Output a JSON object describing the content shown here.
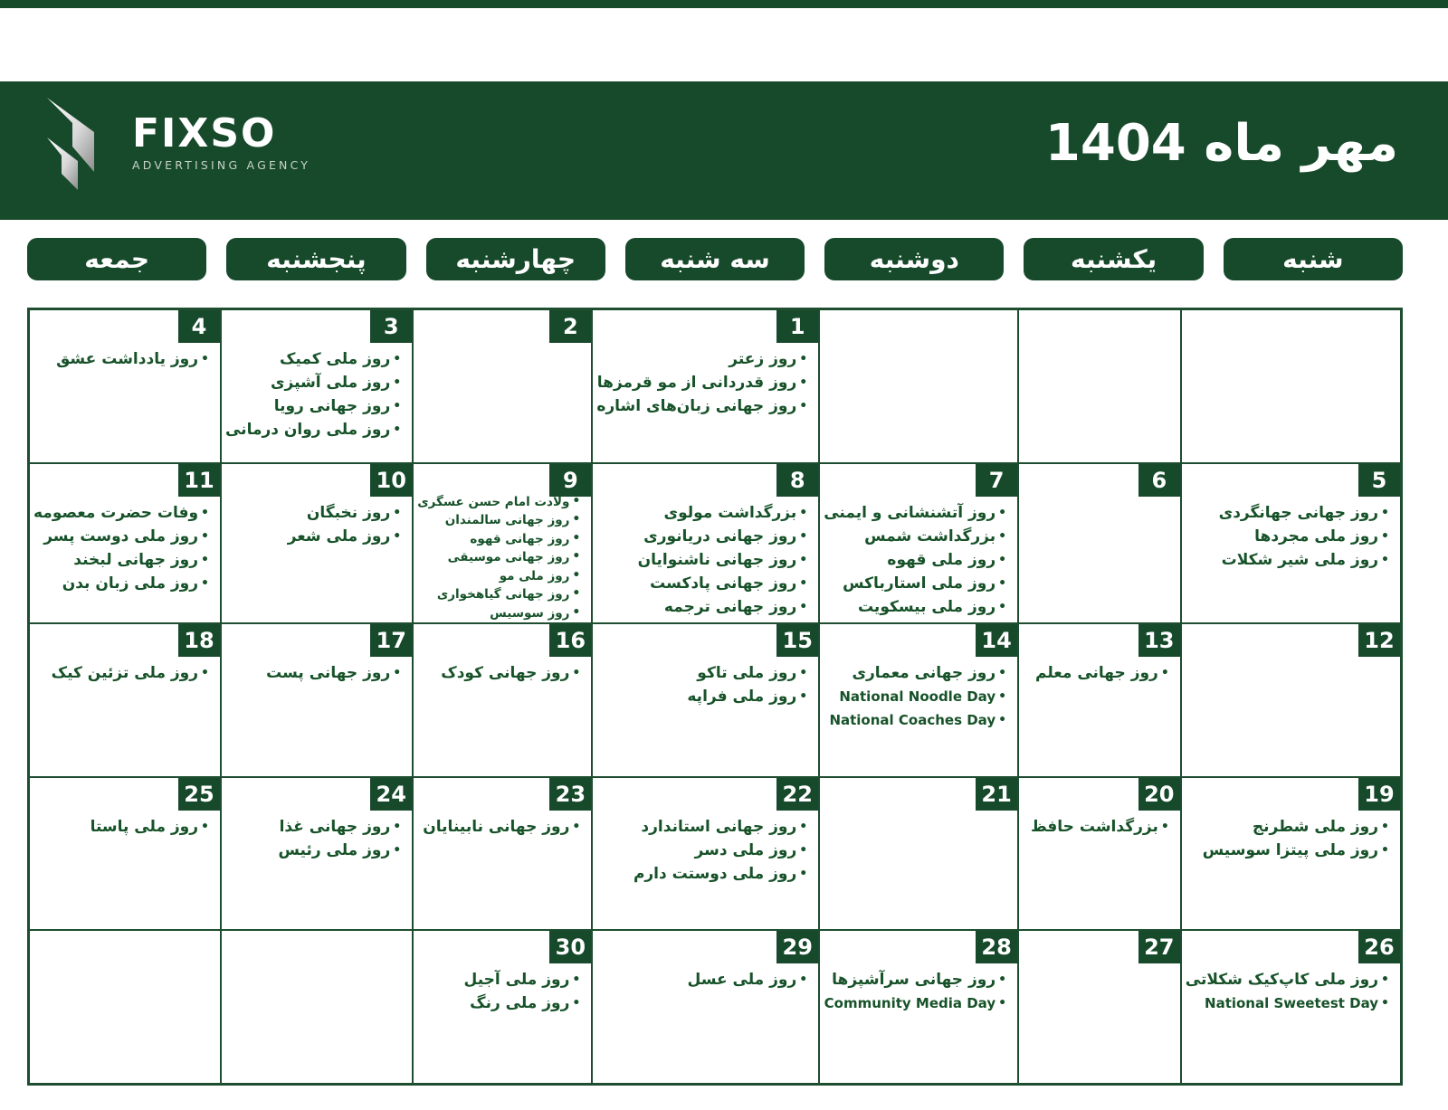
{
  "header": {
    "title": "مهر ماه 1404",
    "logo_name": "FIXSO",
    "logo_subtitle": "ADVERTISING AGENCY"
  },
  "colors": {
    "green": "#17492b",
    "border_green": "#1e4d30",
    "event_text_green": "#175229",
    "background": "#ffffff"
  },
  "weekdays": [
    "شنبه",
    "یکشنبه",
    "دوشنبه",
    "سه شنبه",
    "چهارشنبه",
    "پنجشنبه",
    "جمعه"
  ],
  "calendar": {
    "weeks": [
      [
        {
          "day": null,
          "events": []
        },
        {
          "day": null,
          "events": []
        },
        {
          "day": null,
          "events": []
        },
        {
          "day": "1",
          "events": [
            {
              "t": "روز زعتر"
            },
            {
              "t": "روز قدردانی از مو قرمزها"
            },
            {
              "t": "روز جهانی زبان‌های اشاره"
            }
          ]
        },
        {
          "day": "2",
          "events": []
        },
        {
          "day": "3",
          "events": [
            {
              "t": "روز ملی کمیک"
            },
            {
              "t": "روز ملی آشپزی"
            },
            {
              "t": "روز جهانی رویا"
            },
            {
              "t": "روز ملی روان درمانی"
            }
          ]
        },
        {
          "day": "4",
          "events": [
            {
              "t": "روز یادداشت عشق"
            }
          ]
        }
      ],
      [
        {
          "day": "5",
          "events": [
            {
              "t": "روز جهانی جهانگردی"
            },
            {
              "t": "روز ملی مجردها"
            },
            {
              "t": "روز ملی شیر شکلات"
            }
          ]
        },
        {
          "day": "6",
          "events": []
        },
        {
          "day": "7",
          "events": [
            {
              "t": "روز آتشنشانی و ایمنی"
            },
            {
              "t": "بزرگداشت شمس"
            },
            {
              "t": "روز ملی قهوه"
            },
            {
              "t": "روز ملی استارباکس"
            },
            {
              "t": "روز ملی بیسکویت"
            }
          ]
        },
        {
          "day": "8",
          "events": [
            {
              "t": "بزرگداشت مولوی"
            },
            {
              "t": "روز جهانی دریانوری"
            },
            {
              "t": "روز جهانی ناشنوایان"
            },
            {
              "t": "روز جهانی پادکست"
            },
            {
              "t": "روز جهانی ترجمه"
            }
          ]
        },
        {
          "day": "9",
          "events": [
            {
              "t": "ولادت امام حسن عسگری"
            },
            {
              "t": "روز جهانی سالمندان"
            },
            {
              "t": "روز جهانی قهوه"
            },
            {
              "t": "روز جهانی موسیقی"
            },
            {
              "t": "روز ملی مو"
            },
            {
              "t": "روز جهانی گیاهخواری"
            },
            {
              "t": "روز سوسیس"
            }
          ]
        },
        {
          "day": "10",
          "events": [
            {
              "t": "روز نخبگان"
            },
            {
              "t": "روز ملی شعر"
            }
          ]
        },
        {
          "day": "11",
          "events": [
            {
              "t": "وفات حضرت معصومه"
            },
            {
              "t": "روز ملی دوست پسر"
            },
            {
              "t": "روز جهانی لبخند"
            },
            {
              "t": "روز ملی زبان بدن"
            }
          ]
        }
      ],
      [
        {
          "day": "12",
          "events": []
        },
        {
          "day": "13",
          "events": [
            {
              "t": "روز جهانی معلم"
            }
          ]
        },
        {
          "day": "14",
          "events": [
            {
              "t": "روز جهانی معماری"
            },
            {
              "t": "National Noodle Day",
              "en": true
            },
            {
              "t": "National Coaches Day",
              "en": true
            }
          ]
        },
        {
          "day": "15",
          "events": [
            {
              "t": "روز ملی تاکو"
            },
            {
              "t": "روز ملی فراپه"
            }
          ]
        },
        {
          "day": "16",
          "events": [
            {
              "t": "روز جهانی کودک"
            }
          ]
        },
        {
          "day": "17",
          "events": [
            {
              "t": "روز جهانی پست"
            }
          ]
        },
        {
          "day": "18",
          "events": [
            {
              "t": "روز ملی تزئین کیک"
            }
          ]
        }
      ],
      [
        {
          "day": "19",
          "events": [
            {
              "t": "روز ملی شطرنج"
            },
            {
              "t": "روز ملی پیتزا سوسیس"
            }
          ]
        },
        {
          "day": "20",
          "events": [
            {
              "t": "بزرگداشت حافظ"
            }
          ]
        },
        {
          "day": "21",
          "events": []
        },
        {
          "day": "22",
          "events": [
            {
              "t": "روز جهانی استاندارد"
            },
            {
              "t": "روز ملی دسر"
            },
            {
              "t": "روز ملی دوستت دارم"
            }
          ]
        },
        {
          "day": "23",
          "events": [
            {
              "t": "روز جهانی نابینایان"
            }
          ]
        },
        {
          "day": "24",
          "events": [
            {
              "t": "روز جهانی غذا"
            },
            {
              "t": "روز ملی رئیس"
            }
          ]
        },
        {
          "day": "25",
          "events": [
            {
              "t": "روز ملی پاستا"
            }
          ]
        }
      ],
      [
        {
          "day": "26",
          "events": [
            {
              "t": "روز ملی کاپ‌کیک شکلاتی"
            },
            {
              "t": "National Sweetest Day",
              "en": true
            }
          ]
        },
        {
          "day": "27",
          "events": []
        },
        {
          "day": "28",
          "events": [
            {
              "t": "روز جهانی سرآشپزها"
            },
            {
              "t": "Community Media Day",
              "en": true
            }
          ]
        },
        {
          "day": "29",
          "events": [
            {
              "t": "روز ملی عسل"
            }
          ]
        },
        {
          "day": "30",
          "events": [
            {
              "t": "روز ملی آجیل"
            },
            {
              "t": "روز ملی رنگ"
            }
          ]
        },
        {
          "day": null,
          "events": []
        },
        {
          "day": null,
          "events": []
        }
      ]
    ]
  }
}
